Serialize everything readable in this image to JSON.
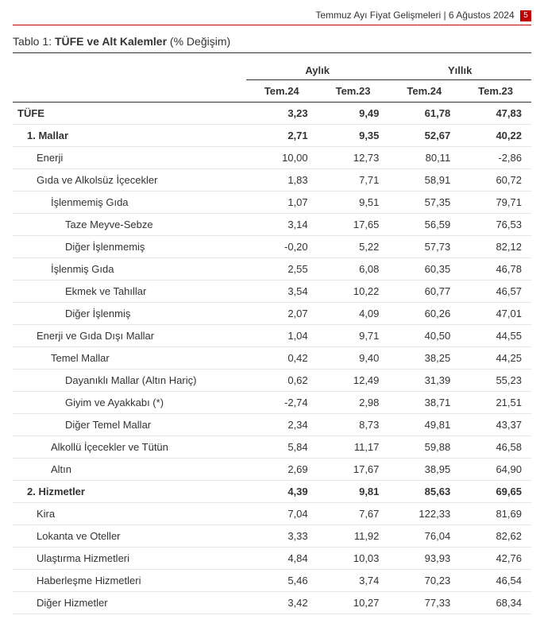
{
  "header": {
    "text": "Temmuz Ayı Fiyat Gelişmeleri | 6 Ağustos 2024",
    "page_number": "5"
  },
  "title": {
    "prefix": "Tablo 1: ",
    "bold": "TÜFE ve Alt Kalemler",
    "suffix": " (% Değişim)"
  },
  "columns": {
    "group1": "Aylık",
    "group2": "Yıllık",
    "c1": "Tem.24",
    "c2": "Tem.23",
    "c3": "Tem.24",
    "c4": "Tem.23"
  },
  "rows": [
    {
      "label": "TÜFE",
      "v": [
        "3,23",
        "9,49",
        "61,78",
        "47,83"
      ],
      "indent": 0,
      "bold": true
    },
    {
      "label": "1. Mallar",
      "v": [
        "2,71",
        "9,35",
        "52,67",
        "40,22"
      ],
      "indent": 1,
      "bold": true
    },
    {
      "label": "Enerji",
      "v": [
        "10,00",
        "12,73",
        "80,11",
        "-2,86"
      ],
      "indent": 2,
      "bold": false
    },
    {
      "label": "Gıda ve Alkolsüz İçecekler",
      "v": [
        "1,83",
        "7,71",
        "58,91",
        "60,72"
      ],
      "indent": 2,
      "bold": false
    },
    {
      "label": "İşlenmemiş Gıda",
      "v": [
        "1,07",
        "9,51",
        "57,35",
        "79,71"
      ],
      "indent": 3,
      "bold": false
    },
    {
      "label": "Taze Meyve-Sebze",
      "v": [
        "3,14",
        "17,65",
        "56,59",
        "76,53"
      ],
      "indent": 4,
      "bold": false
    },
    {
      "label": "Diğer İşlenmemiş",
      "v": [
        "-0,20",
        "5,22",
        "57,73",
        "82,12"
      ],
      "indent": 4,
      "bold": false
    },
    {
      "label": "İşlenmiş Gıda",
      "v": [
        "2,55",
        "6,08",
        "60,35",
        "46,78"
      ],
      "indent": 3,
      "bold": false
    },
    {
      "label": "Ekmek ve Tahıllar",
      "v": [
        "3,54",
        "10,22",
        "60,77",
        "46,57"
      ],
      "indent": 4,
      "bold": false
    },
    {
      "label": "Diğer İşlenmiş",
      "v": [
        "2,07",
        "4,09",
        "60,26",
        "47,01"
      ],
      "indent": 4,
      "bold": false
    },
    {
      "label": "Enerji ve Gıda Dışı Mallar",
      "v": [
        "1,04",
        "9,71",
        "40,50",
        "44,55"
      ],
      "indent": 2,
      "bold": false
    },
    {
      "label": "Temel Mallar",
      "v": [
        "0,42",
        "9,40",
        "38,25",
        "44,25"
      ],
      "indent": 3,
      "bold": false
    },
    {
      "label": "Dayanıklı Mallar (Altın Hariç)",
      "v": [
        "0,62",
        "12,49",
        "31,39",
        "55,23"
      ],
      "indent": 4,
      "bold": false
    },
    {
      "label": "Giyim ve Ayakkabı (*)",
      "v": [
        "-2,74",
        "2,98",
        "38,71",
        "21,51"
      ],
      "indent": 4,
      "bold": false
    },
    {
      "label": "Diğer Temel Mallar",
      "v": [
        "2,34",
        "8,73",
        "49,81",
        "43,37"
      ],
      "indent": 4,
      "bold": false
    },
    {
      "label": "Alkollü İçecekler ve Tütün",
      "v": [
        "5,84",
        "11,17",
        "59,88",
        "46,58"
      ],
      "indent": 3,
      "bold": false
    },
    {
      "label": "Altın",
      "v": [
        "2,69",
        "17,67",
        "38,95",
        "64,90"
      ],
      "indent": 3,
      "bold": false
    },
    {
      "label": "2. Hizmetler",
      "v": [
        "4,39",
        "9,81",
        "85,63",
        "69,65"
      ],
      "indent": 1,
      "bold": true
    },
    {
      "label": "Kira",
      "v": [
        "7,04",
        "7,67",
        "122,33",
        "81,69"
      ],
      "indent": 2,
      "bold": false
    },
    {
      "label": "Lokanta ve Oteller",
      "v": [
        "3,33",
        "11,92",
        "76,04",
        "82,62"
      ],
      "indent": 2,
      "bold": false
    },
    {
      "label": "Ulaştırma Hizmetleri",
      "v": [
        "4,84",
        "10,03",
        "93,93",
        "42,76"
      ],
      "indent": 2,
      "bold": false
    },
    {
      "label": "Haberleşme Hizmetleri",
      "v": [
        "5,46",
        "3,74",
        "70,23",
        "46,54"
      ],
      "indent": 2,
      "bold": false
    },
    {
      "label": "Diğer Hizmetler",
      "v": [
        "3,42",
        "10,27",
        "77,33",
        "68,34"
      ],
      "indent": 2,
      "bold": false
    }
  ]
}
